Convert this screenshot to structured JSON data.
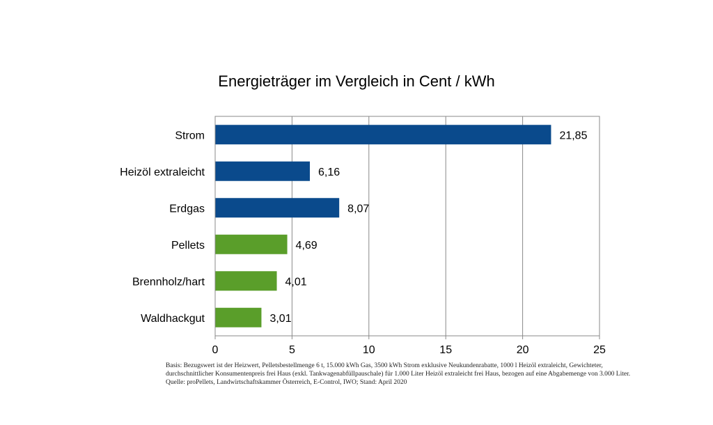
{
  "chart_data": {
    "type": "bar",
    "orientation": "horizontal",
    "title": "Energieträger im Vergleich in Cent / kWh",
    "categories": [
      "Strom",
      "Heizöl extraleicht",
      "Erdgas",
      "Pellets",
      "Brennholz/hart",
      "Waldhackgut"
    ],
    "values": [
      21.85,
      6.16,
      8.07,
      4.69,
      4.01,
      3.01
    ],
    "value_labels": [
      "21,85",
      "6,16",
      "8,07",
      "4,69",
      "4,01",
      "3,01"
    ],
    "bar_colors": [
      "#0a4a8c",
      "#0a4a8c",
      "#0a4a8c",
      "#5a9e2a",
      "#5a9e2a",
      "#5a9e2a"
    ],
    "xlim": [
      0,
      25
    ],
    "xticks": [
      0,
      5,
      10,
      15,
      20,
      25
    ],
    "xtick_labels": [
      "0",
      "5",
      "10",
      "15",
      "20",
      "25"
    ],
    "grid": "vertical",
    "legend": "none"
  },
  "footnote": "Basis: Bezugswert ist der Heizwert, Pelletsbestellmenge 6 t, 15.000 kWh Gas, 3500 kWh Strom exklusive Neukundenrabatte, 1000 l Heizöl extraleicht, Gewichteter, durchschnittlicher Konsumentenpreis frei Haus (exkl. Tankwagenabfüllpauschale) für 1.000 Liter Heizöl extraleicht frei Haus, bezogen auf eine Abgabemenge von 3.000 Liter. Quelle: proPellets, Landwirtschaftskammer Österreich, E-Control, IWO; Stand: April 2020"
}
